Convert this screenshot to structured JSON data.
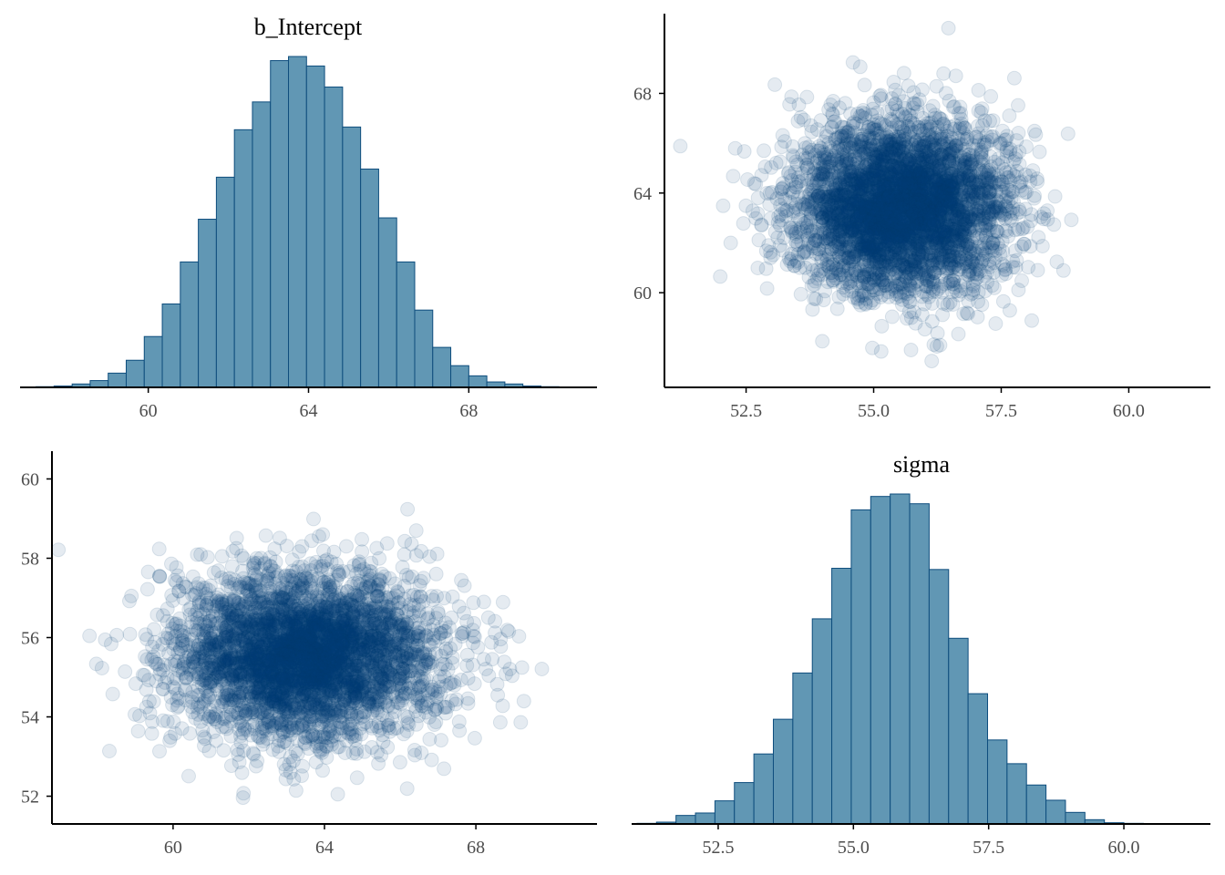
{
  "colors": {
    "bar_fill": "#6197b4",
    "bar_stroke": "#0e4d7d",
    "point": "#003e74",
    "axis": "#000000",
    "tick_text": "#4d4d4d"
  },
  "chart_data": [
    {
      "id": "hist-b-intercept",
      "type": "bar",
      "title": "b_Intercept",
      "xlim": [
        56.8,
        71.2
      ],
      "xticks": [
        60,
        64,
        68
      ],
      "xtick_labels": [
        "60",
        "64",
        "68"
      ],
      "bin_start": 57.2,
      "bin_width": 0.45,
      "values": [
        1,
        2,
        5,
        10,
        21,
        40,
        75,
        123,
        185,
        248,
        310,
        380,
        421,
        482,
        488,
        474,
        443,
        384,
        322,
        250,
        185,
        114,
        59,
        32,
        17,
        8,
        5,
        2,
        1
      ]
    },
    {
      "id": "scatter-sigma-vs-intercept",
      "type": "scatter",
      "title": "",
      "xlabel": "",
      "ylabel": "",
      "xlim": [
        50.9,
        61.6
      ],
      "ylim": [
        56.2,
        71.2
      ],
      "xticks": [
        52.5,
        55.0,
        57.5,
        60.0
      ],
      "xtick_labels": [
        "52.5",
        "55.0",
        "57.5",
        "60.0"
      ],
      "yticks": [
        60,
        64,
        68
      ],
      "ytick_labels": [
        "60",
        "64",
        "68"
      ],
      "x_distribution": {
        "mean": 55.55,
        "sd": 1.05
      },
      "y_distribution": {
        "mean": 63.5,
        "sd": 1.78
      },
      "n_points": 4000
    },
    {
      "id": "scatter-intercept-vs-sigma",
      "type": "scatter",
      "title": "",
      "xlabel": "",
      "ylabel": "",
      "xlim": [
        56.8,
        71.2
      ],
      "ylim": [
        51.3,
        60.7
      ],
      "xticks": [
        60,
        64,
        68
      ],
      "xtick_labels": [
        "60",
        "64",
        "68"
      ],
      "yticks": [
        52,
        54,
        56,
        58,
        60
      ],
      "ytick_labels": [
        "52",
        "54",
        "56",
        "58",
        "60"
      ],
      "x_distribution": {
        "mean": 63.5,
        "sd": 1.78
      },
      "y_distribution": {
        "mean": 55.55,
        "sd": 1.05
      },
      "n_points": 4000
    },
    {
      "id": "hist-sigma",
      "type": "bar",
      "title": "sigma",
      "xlim": [
        50.9,
        61.6
      ],
      "xticks": [
        52.5,
        55.0,
        57.5,
        60.0
      ],
      "xtick_labels": [
        "52.5",
        "55.0",
        "57.5",
        "60.0"
      ],
      "bin_start": 51.0,
      "bin_width": 0.36,
      "values": [
        1,
        3,
        14,
        18,
        38,
        68,
        115,
        172,
        248,
        337,
        420,
        516,
        538,
        542,
        526,
        418,
        305,
        214,
        138,
        99,
        64,
        39,
        19,
        7,
        2,
        1
      ]
    }
  ]
}
